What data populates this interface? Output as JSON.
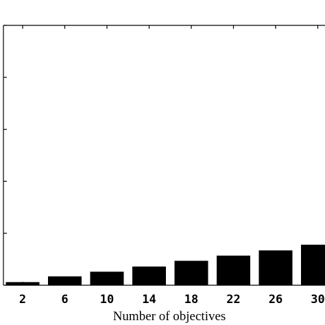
{
  "chart_data": {
    "type": "bar",
    "xlabel": "Number of objectives",
    "categories": [
      "2",
      "6",
      "10",
      "14",
      "18",
      "22",
      "26",
      "30"
    ],
    "values": [
      0.06,
      0.17,
      0.26,
      0.36,
      0.47,
      0.57,
      0.67,
      0.78
    ],
    "ylim": [
      0,
      5
    ],
    "colors": {
      "bar": "#000000",
      "axis": "#000000",
      "background": "#ffffff"
    },
    "grid": false
  }
}
